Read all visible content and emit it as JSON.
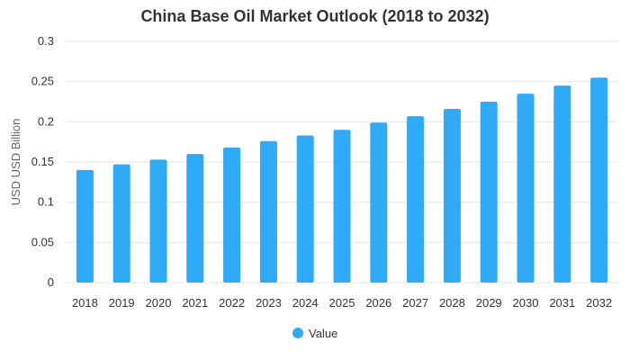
{
  "chart_data": {
    "type": "bar",
    "title": "China Base Oil Market Outlook (2018 to 2032)",
    "xlabel": "",
    "ylabel": "USD USD Billion",
    "categories": [
      "2018",
      "2019",
      "2020",
      "2021",
      "2022",
      "2023",
      "2024",
      "2025",
      "2026",
      "2027",
      "2028",
      "2029",
      "2030",
      "2031",
      "2032"
    ],
    "series": [
      {
        "name": "Value",
        "values": [
          0.14,
          0.147,
          0.153,
          0.16,
          0.168,
          0.176,
          0.183,
          0.19,
          0.199,
          0.207,
          0.216,
          0.225,
          0.235,
          0.245,
          0.255
        ]
      }
    ],
    "ylim": [
      0,
      0.3
    ],
    "yticks": [
      "0",
      "0.05",
      "0.1",
      "0.15",
      "0.2",
      "0.25",
      "0.3"
    ],
    "grid": true,
    "legend_position": "bottom-center",
    "colors": {
      "bar": "#2eaaf7"
    }
  }
}
